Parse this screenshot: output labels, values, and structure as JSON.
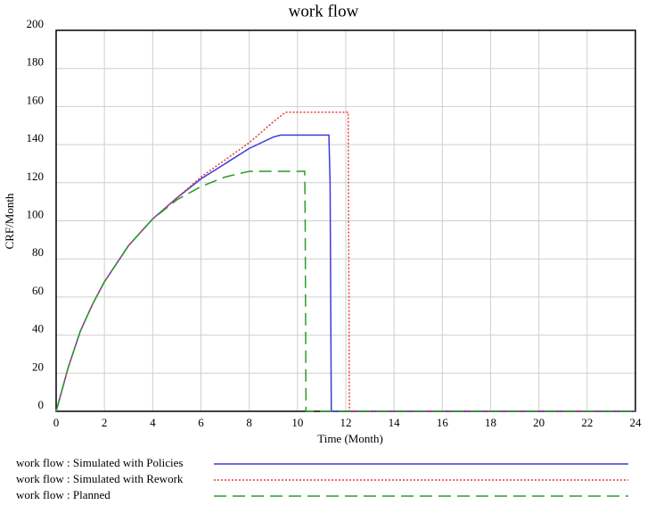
{
  "chart_data": {
    "type": "line",
    "title": "work flow",
    "x_label": "Time (Month)",
    "y_label": "CRF/Month",
    "xlim": [
      0,
      24
    ],
    "ylim": [
      0,
      200
    ],
    "xticks": [
      0,
      2,
      4,
      6,
      8,
      10,
      12,
      14,
      16,
      18,
      20,
      22,
      24
    ],
    "yticks": [
      0,
      20,
      40,
      60,
      80,
      100,
      120,
      140,
      160,
      180,
      200
    ],
    "grid": true,
    "legend": "bottom",
    "series": [
      {
        "name": "work flow : Simulated with Policies",
        "color": "#3b3bdc",
        "dash": "solid",
        "x": [
          0,
          0.5,
          1,
          1.5,
          2,
          3,
          4,
          5,
          6,
          7,
          8,
          9,
          9.3,
          11.3,
          11.35,
          11.4,
          24
        ],
        "values": [
          0,
          23,
          42,
          56,
          68,
          87,
          101,
          112,
          122,
          130,
          138,
          144,
          145,
          145,
          120,
          0,
          0
        ]
      },
      {
        "name": "work flow : Simulated with Rework",
        "color": "#e83a3a",
        "dash": "dotted",
        "x": [
          0,
          0.5,
          1,
          1.5,
          2,
          3,
          4,
          5,
          6,
          7,
          8,
          9,
          9.5,
          12.1,
          12.15,
          24
        ],
        "values": [
          0,
          23,
          42,
          56,
          68,
          87,
          101,
          112,
          123,
          132,
          141,
          152,
          157,
          157,
          0,
          0
        ]
      },
      {
        "name": "work flow : Planned",
        "color": "#2e9a2e",
        "dash": "dashed",
        "x": [
          0,
          0.5,
          1,
          1.5,
          2,
          3,
          4,
          5,
          6,
          7,
          8,
          9,
          10.3,
          10.32,
          10.35,
          24
        ],
        "values": [
          0,
          23,
          42,
          56,
          68,
          87,
          101,
          111,
          118,
          123,
          126,
          126,
          126,
          96,
          0,
          0
        ]
      }
    ]
  }
}
